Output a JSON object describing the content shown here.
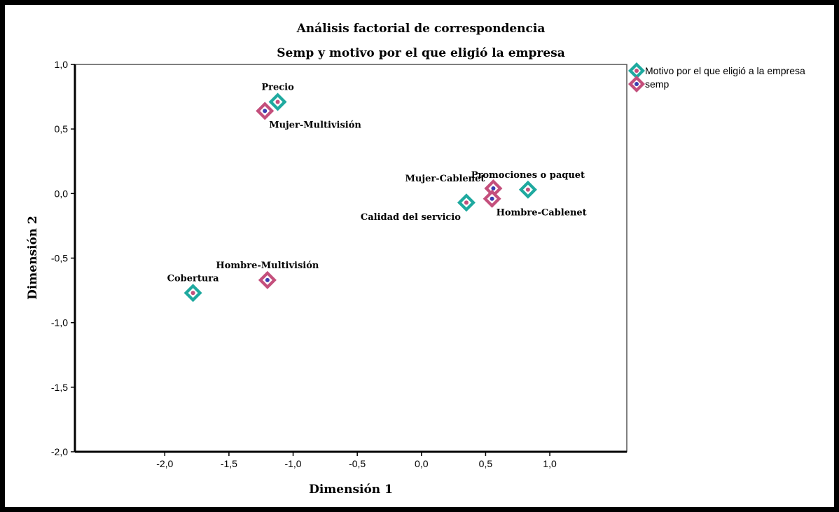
{
  "chart_data": {
    "type": "scatter",
    "title": "Análisis factorial de correspondencia",
    "subtitle": "Semp y motivo por el que eligió la empresa",
    "xlabel": "Dimensión 1",
    "ylabel": "Dimensión 2",
    "xlim": [
      -2.7,
      1.6
    ],
    "ylim": [
      -2.0,
      1.0
    ],
    "x_ticks": [
      {
        "value": -2.0,
        "label": "-2,0"
      },
      {
        "value": -1.5,
        "label": "-1,5"
      },
      {
        "value": -1.0,
        "label": "-1,0"
      },
      {
        "value": -0.5,
        "label": "-0,5"
      },
      {
        "value": 0.0,
        "label": "0,0"
      },
      {
        "value": 0.5,
        "label": "0,5"
      },
      {
        "value": 1.0,
        "label": "1,0"
      }
    ],
    "y_ticks": [
      {
        "value": 1.0,
        "label": "1,0"
      },
      {
        "value": 0.5,
        "label": "0,5"
      },
      {
        "value": 0.0,
        "label": "0,0"
      },
      {
        "value": -0.5,
        "label": "-0,5"
      },
      {
        "value": -1.0,
        "label": "-1,0"
      },
      {
        "value": -1.5,
        "label": "-1,5"
      },
      {
        "value": -2.0,
        "label": "-2,0"
      }
    ],
    "grid": false,
    "legend_position": "outside-top-right",
    "series": [
      {
        "name": "Motivo por el que eligió a la empresa",
        "outer_color": "#1fa99f",
        "inner_color": "#c44f7c",
        "points": [
          {
            "label": "Precio",
            "x": -1.12,
            "y": 0.71,
            "label_pos": "above"
          },
          {
            "label": "Promociones o paquet",
            "x": 0.83,
            "y": 0.03,
            "label_pos": "above"
          },
          {
            "label": "Calidad del servicio",
            "x": 0.35,
            "y": -0.07,
            "label_pos": "below-left"
          },
          {
            "label": "Cobertura",
            "x": -1.78,
            "y": -0.77,
            "label_pos": "above"
          }
        ]
      },
      {
        "name": "semp",
        "outer_color": "#c44f7c",
        "inner_color": "#3b3db0",
        "points": [
          {
            "label": "Mujer-Multivisión",
            "x": -1.22,
            "y": 0.64,
            "label_pos": "below-right"
          },
          {
            "label": "Mujer-Cablenet",
            "x": 0.56,
            "y": 0.04,
            "label_pos": "above-left"
          },
          {
            "label": "Hombre-Cablenet",
            "x": 0.55,
            "y": -0.04,
            "label_pos": "below-right"
          },
          {
            "label": "Hombre-Multivisión",
            "x": -1.2,
            "y": -0.67,
            "label_pos": "above"
          }
        ]
      }
    ]
  }
}
